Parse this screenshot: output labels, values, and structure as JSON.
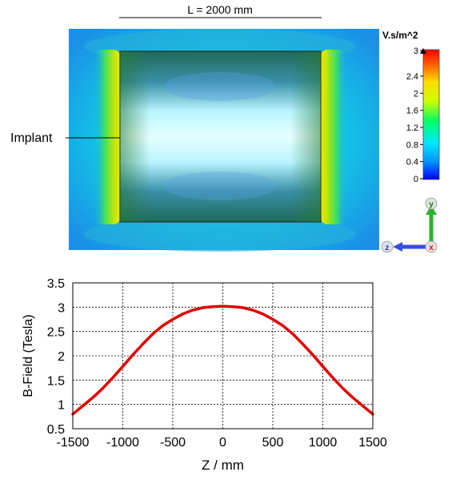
{
  "field_view": {
    "length_label": "L = 2000 mm",
    "implant_label": "Implant",
    "colorbar": {
      "unit": "V.s/m^2",
      "ticks": [
        "3",
        "2.4",
        "2",
        "1.6",
        "1.2",
        "0.8",
        "0.4",
        "0"
      ],
      "tick_values": [
        3,
        2.4,
        2,
        1.6,
        1.2,
        0.8,
        0.4,
        0
      ],
      "range": [
        0,
        3
      ],
      "colors": [
        "#0000ff",
        "#0096ff",
        "#00e6ff",
        "#00ff64",
        "#c8ff00",
        "#ffdc00",
        "#ff6400",
        "#ff0000"
      ]
    },
    "axes_triad": {
      "y_label": "y",
      "z_label": "z",
      "x_label": "x"
    }
  },
  "chart_data": {
    "type": "line",
    "title": "",
    "xlabel": "Z / mm",
    "ylabel": "B-Field (Tesla)",
    "xlim": [
      -1500,
      1500
    ],
    "ylim": [
      0.5,
      3.5
    ],
    "x_ticks": [
      "-1500",
      "-1000",
      "-500",
      "0",
      "500",
      "1000",
      "1500"
    ],
    "x_tick_values": [
      -1500,
      -1000,
      -500,
      0,
      500,
      1000,
      1500
    ],
    "y_ticks": [
      "0.5",
      "1",
      "1.5",
      "2",
      "2.5",
      "3",
      "3.5"
    ],
    "y_tick_values": [
      0.5,
      1,
      1.5,
      2,
      2.5,
      3,
      3.5
    ],
    "grid": true,
    "series": [
      {
        "color": "#e00000",
        "x": [
          -1500,
          -1400,
          -1300,
          -1200,
          -1100,
          -1000,
          -900,
          -800,
          -700,
          -600,
          -500,
          -400,
          -300,
          -200,
          -100,
          0,
          100,
          200,
          300,
          400,
          500,
          600,
          700,
          800,
          900,
          1000,
          1100,
          1200,
          1300,
          1400,
          1500
        ],
        "y": [
          0.8,
          0.97,
          1.14,
          1.33,
          1.55,
          1.78,
          2.02,
          2.24,
          2.45,
          2.62,
          2.75,
          2.86,
          2.94,
          2.99,
          3.01,
          3.02,
          3.01,
          2.99,
          2.94,
          2.86,
          2.75,
          2.62,
          2.45,
          2.24,
          2.02,
          1.78,
          1.55,
          1.33,
          1.14,
          0.97,
          0.8
        ]
      }
    ]
  }
}
